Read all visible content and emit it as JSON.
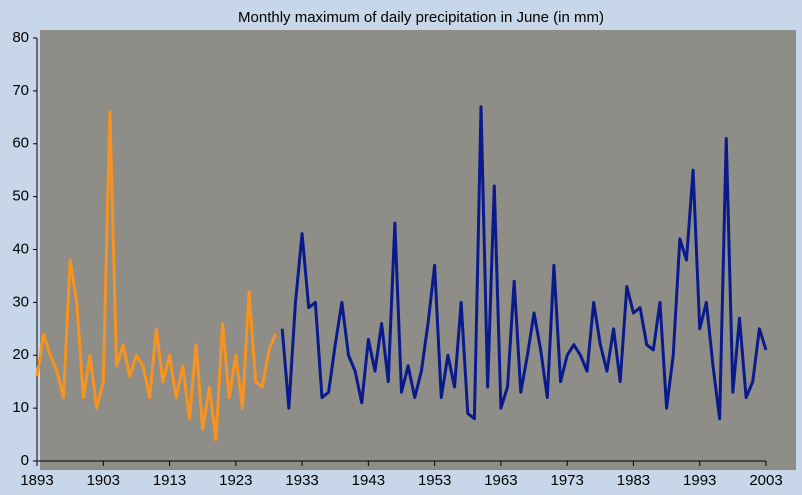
{
  "chart_data": {
    "type": "line",
    "title": "Monthly maximum  of daily precipitation in June (in mm)",
    "xlim": [
      1893,
      2003
    ],
    "xticks": [
      1893,
      1903,
      1913,
      1923,
      1933,
      1943,
      1953,
      1963,
      1973,
      1983,
      1993,
      2003
    ],
    "ylim": [
      0,
      80
    ],
    "yticks": [
      0,
      10,
      20,
      30,
      40,
      50,
      60,
      70,
      80
    ],
    "series": [
      {
        "color": "#f7931e",
        "x": [
          1893,
          1894,
          1895,
          1896,
          1897,
          1898,
          1899,
          1900,
          1901,
          1902,
          1903,
          1904,
          1905,
          1906,
          1907,
          1908,
          1909,
          1910,
          1911,
          1912,
          1913,
          1914,
          1915,
          1916,
          1917,
          1918,
          1919,
          1920,
          1921,
          1922,
          1923,
          1924,
          1925,
          1926,
          1927,
          1928,
          1929
        ],
        "values": [
          16,
          24,
          20,
          17,
          12,
          38,
          30,
          12,
          20,
          10,
          15,
          66,
          18,
          22,
          16,
          20,
          18,
          12,
          25,
          15,
          20,
          12,
          18,
          8,
          22,
          6,
          14,
          4,
          26,
          12,
          20,
          10,
          32,
          15,
          14,
          21,
          24
        ]
      },
      {
        "color": "#0a1a8c",
        "x": [
          1930,
          1931,
          1932,
          1933,
          1934,
          1935,
          1936,
          1937,
          1938,
          1939,
          1940,
          1941,
          1942,
          1943,
          1944,
          1945,
          1946,
          1947,
          1948,
          1949,
          1950,
          1951,
          1952,
          1953,
          1954,
          1955,
          1956,
          1957,
          1958,
          1959,
          1960,
          1961,
          1962,
          1963,
          1964,
          1965,
          1966,
          1967,
          1968,
          1969,
          1970,
          1971,
          1972,
          1973,
          1974,
          1975,
          1976,
          1977,
          1978,
          1979,
          1980,
          1981,
          1982,
          1983,
          1984,
          1985,
          1986,
          1987,
          1988,
          1989,
          1990,
          1991,
          1992,
          1993,
          1994,
          1995,
          1996,
          1997,
          1998,
          1999,
          2000,
          2001,
          2002,
          2003
        ],
        "values": [
          25,
          10,
          30,
          43,
          29,
          30,
          12,
          13,
          22,
          30,
          20,
          17,
          11,
          23,
          17,
          26,
          15,
          45,
          13,
          18,
          12,
          17,
          26,
          37,
          12,
          20,
          14,
          30,
          9,
          8,
          67,
          14,
          52,
          10,
          14,
          34,
          13,
          20,
          28,
          21,
          12,
          37,
          15,
          20,
          22,
          20,
          17,
          30,
          22,
          17,
          25,
          15,
          33,
          28,
          29,
          22,
          21,
          30,
          10,
          20,
          42,
          38,
          55,
          25,
          30,
          18,
          8,
          61,
          13,
          27,
          12,
          15,
          25,
          21
        ]
      }
    ]
  }
}
